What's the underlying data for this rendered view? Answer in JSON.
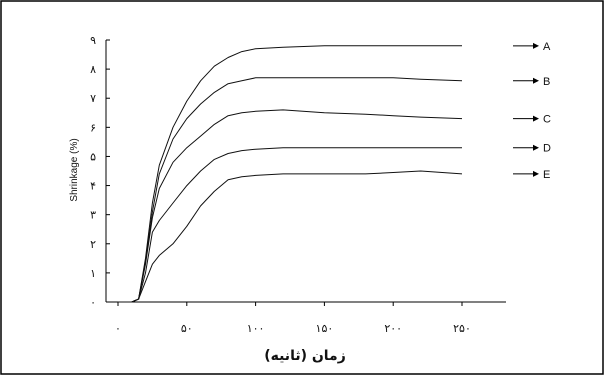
{
  "chart_data": {
    "type": "line",
    "xlabel": "زمان (ثانیه)",
    "ylabel": "Shrinkage (%)",
    "xlim": [
      0,
      260
    ],
    "ylim": [
      0,
      9
    ],
    "grid": false,
    "legend": "right",
    "x_ticks": [
      {
        "value": 0,
        "label": "٠"
      },
      {
        "value": 50,
        "label": "۵٠"
      },
      {
        "value": 100,
        "label": "١٠٠"
      },
      {
        "value": 150,
        "label": "١۵٠"
      },
      {
        "value": 200,
        "label": "٢٠٠"
      },
      {
        "value": 250,
        "label": "٢۵٠"
      }
    ],
    "y_ticks": [
      {
        "value": 0,
        "label": "٠"
      },
      {
        "value": 1,
        "label": "١"
      },
      {
        "value": 2,
        "label": "٢"
      },
      {
        "value": 3,
        "label": "٣"
      },
      {
        "value": 4,
        "label": "۴"
      },
      {
        "value": 5,
        "label": "۵"
      },
      {
        "value": 6,
        "label": "۶"
      },
      {
        "value": 7,
        "label": "٧"
      },
      {
        "value": 8,
        "label": "٨"
      },
      {
        "value": 9,
        "label": "٩"
      }
    ],
    "series": [
      {
        "name": "A",
        "x": [
          0,
          10,
          15,
          20,
          25,
          30,
          40,
          50,
          60,
          70,
          80,
          90,
          100,
          120,
          150,
          180,
          200,
          220,
          250
        ],
        "y": [
          0,
          0,
          0.1,
          1.5,
          3.4,
          4.7,
          6.0,
          6.9,
          7.6,
          8.1,
          8.4,
          8.6,
          8.7,
          8.75,
          8.8,
          8.8,
          8.8,
          8.8,
          8.8
        ]
      },
      {
        "name": "B",
        "x": [
          0,
          10,
          15,
          20,
          25,
          30,
          40,
          50,
          60,
          70,
          80,
          90,
          100,
          120,
          150,
          180,
          200,
          220,
          250
        ],
        "y": [
          0,
          0,
          0.1,
          1.4,
          3.1,
          4.4,
          5.6,
          6.3,
          6.8,
          7.2,
          7.5,
          7.6,
          7.7,
          7.7,
          7.7,
          7.7,
          7.7,
          7.65,
          7.6
        ]
      },
      {
        "name": "C",
        "x": [
          0,
          10,
          15,
          20,
          25,
          30,
          40,
          50,
          60,
          70,
          80,
          90,
          100,
          120,
          150,
          180,
          200,
          220,
          250
        ],
        "y": [
          0,
          0,
          0.1,
          1.3,
          2.9,
          3.9,
          4.8,
          5.3,
          5.7,
          6.1,
          6.4,
          6.5,
          6.55,
          6.6,
          6.5,
          6.45,
          6.4,
          6.35,
          6.3
        ]
      },
      {
        "name": "D",
        "x": [
          0,
          10,
          15,
          20,
          25,
          30,
          40,
          50,
          60,
          70,
          80,
          90,
          100,
          120,
          150,
          180,
          200,
          220,
          250
        ],
        "y": [
          0,
          0,
          0.1,
          1.0,
          2.4,
          2.8,
          3.4,
          4.0,
          4.5,
          4.9,
          5.1,
          5.2,
          5.25,
          5.3,
          5.3,
          5.3,
          5.3,
          5.3,
          5.3
        ]
      },
      {
        "name": "E",
        "x": [
          0,
          10,
          15,
          20,
          25,
          30,
          40,
          50,
          60,
          70,
          80,
          90,
          100,
          120,
          150,
          180,
          200,
          220,
          250
        ],
        "y": [
          0,
          0,
          0.1,
          0.7,
          1.3,
          1.6,
          2.0,
          2.6,
          3.3,
          3.8,
          4.2,
          4.3,
          4.35,
          4.4,
          4.4,
          4.4,
          4.45,
          4.5,
          4.4
        ]
      }
    ]
  }
}
